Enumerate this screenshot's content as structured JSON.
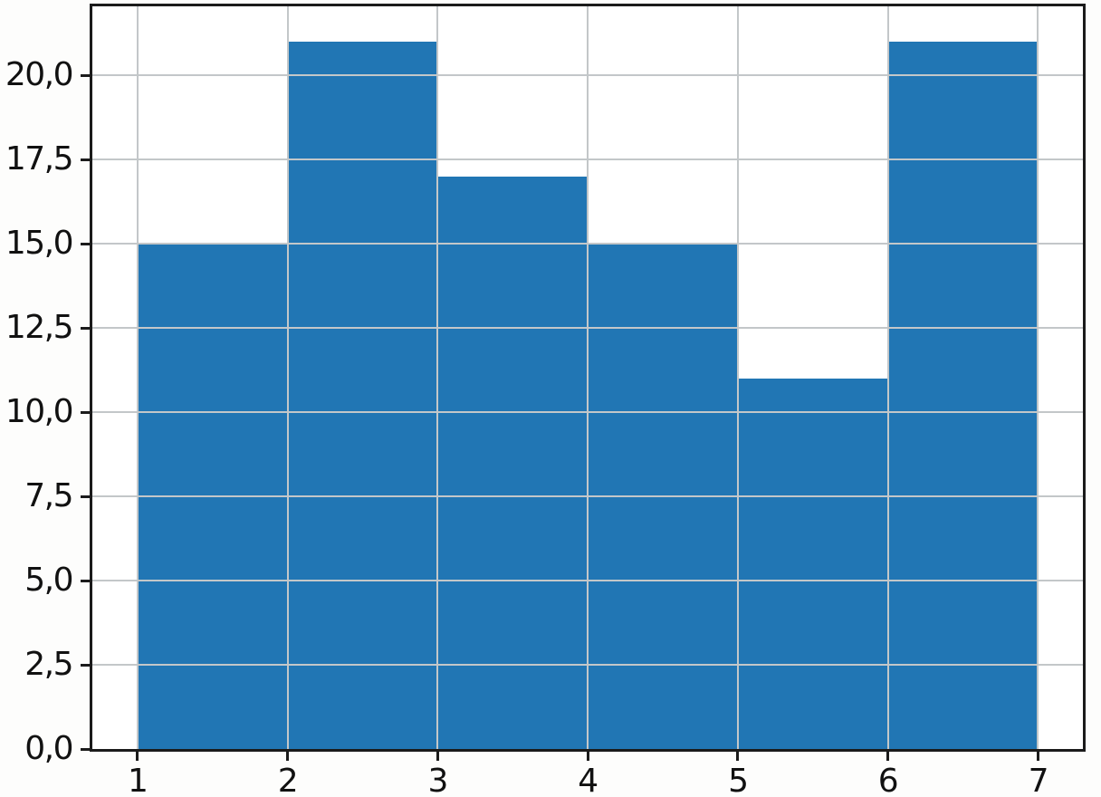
{
  "chart_data": {
    "type": "bar",
    "subtype": "histogram",
    "title": "",
    "xlabel": "",
    "ylabel": "",
    "bin_edges": [
      1,
      2,
      3,
      4,
      5,
      6,
      7
    ],
    "values": [
      15,
      21,
      17,
      15,
      11,
      21
    ],
    "total_count": 100,
    "x_tick_values": [
      1,
      2,
      3,
      4,
      5,
      6,
      7
    ],
    "x_tick_labels": [
      "1",
      "2",
      "3",
      "4",
      "5",
      "6",
      "7"
    ],
    "y_tick_values": [
      0,
      2.5,
      5,
      7.5,
      10,
      12.5,
      15,
      17.5,
      20
    ],
    "y_tick_labels": [
      "0,0",
      "2,5",
      "5,0",
      "7,5",
      "10,0",
      "12,5",
      "15,0",
      "17,5",
      "20,0"
    ],
    "decimal_separator": ",",
    "xlim": [
      0.7,
      7.3
    ],
    "ylim": [
      0,
      22.05
    ],
    "grid": true,
    "legend": null,
    "colors": {
      "bar_fill": "#2176b4",
      "grid_over_bars": "#c3c7c9",
      "grid_over_background": "#b3b3b3",
      "spine": "#1b1b1b",
      "tick_label": "#111111",
      "plot_background": "#ffffff",
      "figure_background": "#fdfdfc"
    }
  }
}
